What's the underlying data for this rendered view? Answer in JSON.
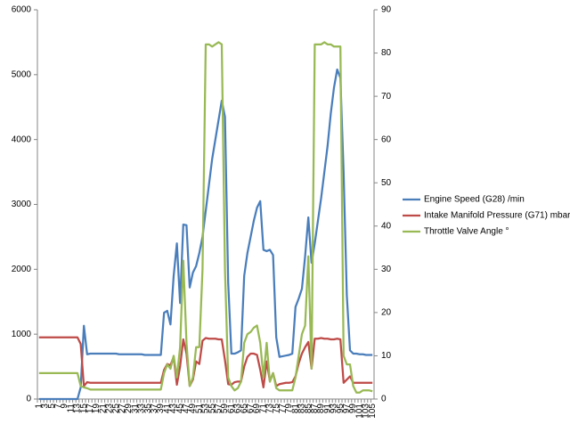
{
  "chart_data": {
    "type": "line",
    "categories": [
      1,
      null,
      3,
      null,
      5,
      null,
      7,
      null,
      9,
      null,
      11,
      null,
      13,
      null,
      15,
      null,
      17,
      null,
      19,
      null,
      21,
      null,
      23,
      null,
      25,
      null,
      27,
      null,
      29,
      null,
      31,
      null,
      33,
      null,
      35,
      null,
      37,
      null,
      39,
      null,
      41,
      null,
      43,
      null,
      45,
      null,
      47,
      null,
      49,
      null,
      51,
      null,
      53,
      null,
      55,
      null,
      57,
      null,
      59,
      null,
      61,
      null,
      63,
      null,
      65,
      null,
      67,
      null,
      69,
      null,
      71,
      null,
      73,
      null,
      75,
      null,
      77,
      null,
      79,
      null,
      81,
      null,
      83,
      null,
      85,
      null,
      87,
      null,
      89,
      null,
      91,
      null,
      93,
      null,
      95,
      null,
      97,
      null,
      99,
      null,
      101,
      null,
      103,
      null,
      105
    ],
    "ylim": [
      0,
      6000
    ],
    "yticks": [
      0,
      1000,
      2000,
      3000,
      4000,
      5000,
      6000
    ],
    "y2lim": [
      0,
      90
    ],
    "y2ticks": [
      0,
      10,
      20,
      30,
      40,
      50,
      60,
      70,
      80,
      90
    ],
    "grid": false,
    "legend": "right",
    "series": [
      {
        "name": "Engine Speed (G28)  /min",
        "color": "#4a7ebb",
        "values": [
          0,
          0,
          0,
          0,
          0,
          0,
          0,
          0,
          0,
          0,
          0,
          0,
          0,
          180,
          1130,
          690,
          700,
          700,
          700,
          700,
          700,
          700,
          700,
          700,
          700,
          690,
          690,
          690,
          690,
          690,
          690,
          690,
          690,
          680,
          680,
          680,
          680,
          680,
          680,
          1330,
          1360,
          1150,
          1900,
          2400,
          1480,
          2690,
          2680,
          1720,
          1950,
          2050,
          2250,
          2500,
          2900,
          3300,
          3700,
          4000,
          4300,
          4600,
          4350,
          1800,
          700,
          700,
          720,
          750,
          1900,
          2250,
          2500,
          2750,
          2950,
          3050,
          2300,
          2280,
          2300,
          2220,
          950,
          650,
          660,
          670,
          680,
          700,
          1420,
          1550,
          1700,
          2200,
          2800,
          2100,
          2400,
          2750,
          3100,
          3500,
          3900,
          4400,
          4800,
          5080,
          4950,
          3500,
          1600,
          750,
          700,
          700,
          690,
          690,
          680,
          680,
          680
        ]
      },
      {
        "name": "Intake Manifold Pressure (G71)  mbar",
        "color": "#be4b48",
        "values": [
          950,
          950,
          950,
          950,
          950,
          950,
          950,
          950,
          950,
          950,
          950,
          950,
          950,
          850,
          200,
          260,
          250,
          250,
          250,
          250,
          250,
          250,
          250,
          250,
          250,
          250,
          250,
          250,
          250,
          250,
          250,
          250,
          250,
          250,
          250,
          250,
          250,
          250,
          250,
          450,
          540,
          520,
          650,
          220,
          500,
          920,
          700,
          200,
          300,
          580,
          540,
          900,
          940,
          930,
          930,
          930,
          920,
          920,
          600,
          230,
          220,
          260,
          270,
          270,
          500,
          650,
          700,
          700,
          680,
          450,
          180,
          580,
          280,
          400,
          200,
          230,
          240,
          250,
          250,
          260,
          350,
          550,
          700,
          800,
          880,
          470,
          930,
          930,
          940,
          930,
          930,
          920,
          920,
          930,
          920,
          250,
          300,
          350,
          250,
          250,
          250,
          250,
          250,
          250,
          250
        ]
      },
      {
        "name": "Throttle Valve Angle °",
        "color": "#98b954",
        "axis": "y2",
        "values": [
          6,
          6,
          6,
          6,
          6,
          6,
          6,
          6,
          6,
          6,
          6,
          6,
          6,
          3,
          2.7,
          2.5,
          2.2,
          2.2,
          2.2,
          2.2,
          2.2,
          2.2,
          2.2,
          2.2,
          2.2,
          2.2,
          2.2,
          2.2,
          2.2,
          2.2,
          2.2,
          2.2,
          2.2,
          2.2,
          2.2,
          2.2,
          2.2,
          2.2,
          2.2,
          6,
          8,
          7,
          10,
          5,
          12,
          32,
          13,
          3,
          5,
          12,
          12,
          30,
          82,
          82,
          81.5,
          82,
          82.5,
          82,
          30,
          5,
          3,
          2,
          2.5,
          4,
          13,
          15,
          15.5,
          16.5,
          17,
          13,
          5,
          13,
          4,
          6,
          2.5,
          2,
          2,
          2,
          2,
          2,
          5,
          10,
          15,
          17,
          33,
          7,
          82,
          82,
          82,
          82.5,
          82,
          82,
          81.5,
          81.5,
          81.5,
          10,
          8,
          8,
          3,
          1.5,
          1.5,
          2,
          2,
          2,
          1.8
        ]
      }
    ]
  }
}
